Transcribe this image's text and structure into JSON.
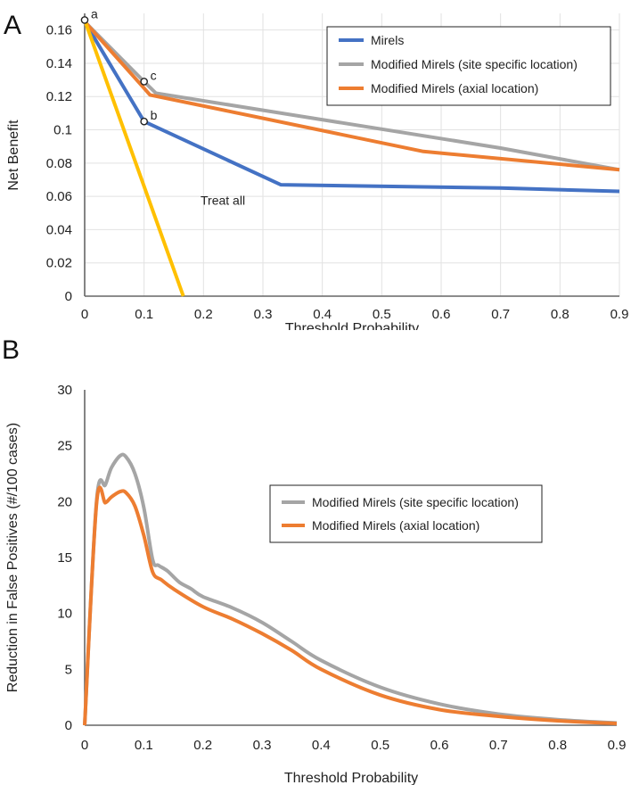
{
  "chart_data": [
    {
      "panel": "A",
      "type": "line",
      "xlabel": "Threshold Probability",
      "ylabel": "Net Benefit",
      "xlim": [
        0,
        0.9
      ],
      "ylim": [
        0,
        0.17
      ],
      "xticks": [
        "0",
        "0.1",
        "0.2",
        "0.3",
        "0.4",
        "0.5",
        "0.6",
        "0.7",
        "0.8",
        "0.9"
      ],
      "yticks": [
        "0",
        "0.02",
        "0.04",
        "0.06",
        "0.08",
        "0.1",
        "0.12",
        "0.14",
        "0.16"
      ],
      "grid": true,
      "legend_position": "top-right",
      "series": [
        {
          "name": "Mirels",
          "color": "#4472c4",
          "points": [
            [
              0,
              0.165
            ],
            [
              0.1,
              0.105
            ],
            [
              0.33,
              0.067
            ],
            [
              0.7,
              0.065
            ],
            [
              0.9,
              0.063
            ]
          ]
        },
        {
          "name": "Modified Mirels (site specific location)",
          "color": "#a5a5a5",
          "points": [
            [
              0,
              0.165
            ],
            [
              0.1,
              0.129
            ],
            [
              0.12,
              0.122
            ],
            [
              0.7,
              0.089
            ],
            [
              0.9,
              0.076
            ]
          ]
        },
        {
          "name": "Modified Mirels (axial location)",
          "color": "#ed7d31",
          "points": [
            [
              0,
              0.165
            ],
            [
              0.1,
              0.125
            ],
            [
              0.11,
              0.121
            ],
            [
              0.57,
              0.087
            ],
            [
              0.9,
              0.076
            ]
          ]
        },
        {
          "name": "Treat all",
          "color": "#ffc000",
          "in_legend": false,
          "points": [
            [
              0,
              0.166
            ],
            [
              0.166,
              0
            ]
          ]
        }
      ],
      "annotations": [
        {
          "text": "a",
          "x": 0,
          "y": 0.166
        },
        {
          "text": "b",
          "x": 0.1,
          "y": 0.105
        },
        {
          "text": "c",
          "x": 0.1,
          "y": 0.129
        },
        {
          "text": "Treat all",
          "x": 0.195,
          "y": 0.055
        }
      ]
    },
    {
      "panel": "B",
      "type": "line",
      "xlabel": "Threshold Probability",
      "ylabel": "Reduction in False Positives (#/100 cases)",
      "xlim": [
        0,
        0.9
      ],
      "ylim": [
        0,
        30
      ],
      "xticks": [
        "0",
        "0.1",
        "0.2",
        "0.3",
        "0.4",
        "0.5",
        "0.6",
        "0.7",
        "0.8",
        "0.9"
      ],
      "yticks": [
        "0",
        "5",
        "10",
        "15",
        "20",
        "25",
        "30"
      ],
      "grid": false,
      "legend_position": "center-right",
      "series": [
        {
          "name": "Modified Mirels (site specific location)",
          "color": "#a5a5a5",
          "points": [
            [
              0,
              0
            ],
            [
              0.02,
              20
            ],
            [
              0.035,
              21.5
            ],
            [
              0.045,
              23
            ],
            [
              0.06,
              24.1
            ],
            [
              0.07,
              24
            ],
            [
              0.085,
              22.5
            ],
            [
              0.1,
              19.5
            ],
            [
              0.115,
              14.8
            ],
            [
              0.125,
              14.3
            ],
            [
              0.14,
              13.8
            ],
            [
              0.16,
              12.8
            ],
            [
              0.18,
              12.2
            ],
            [
              0.2,
              11.5
            ],
            [
              0.25,
              10.5
            ],
            [
              0.3,
              9.2
            ],
            [
              0.35,
              7.5
            ],
            [
              0.4,
              5.8
            ],
            [
              0.5,
              3.4
            ],
            [
              0.6,
              1.9
            ],
            [
              0.7,
              1.0
            ],
            [
              0.8,
              0.5
            ],
            [
              0.9,
              0.2
            ]
          ]
        },
        {
          "name": "Modified Mirels (axial location)",
          "color": "#ed7d31",
          "points": [
            [
              0,
              0
            ],
            [
              0.02,
              19.8
            ],
            [
              0.035,
              19.9
            ],
            [
              0.045,
              20.4
            ],
            [
              0.06,
              20.9
            ],
            [
              0.07,
              20.8
            ],
            [
              0.085,
              19.6
            ],
            [
              0.1,
              17
            ],
            [
              0.115,
              13.7
            ],
            [
              0.13,
              13
            ],
            [
              0.15,
              12.2
            ],
            [
              0.2,
              10.6
            ],
            [
              0.25,
              9.5
            ],
            [
              0.3,
              8.2
            ],
            [
              0.35,
              6.7
            ],
            [
              0.4,
              5.0
            ],
            [
              0.5,
              2.7
            ],
            [
              0.6,
              1.4
            ],
            [
              0.7,
              0.8
            ],
            [
              0.8,
              0.4
            ],
            [
              0.9,
              0.15
            ]
          ]
        }
      ]
    }
  ]
}
